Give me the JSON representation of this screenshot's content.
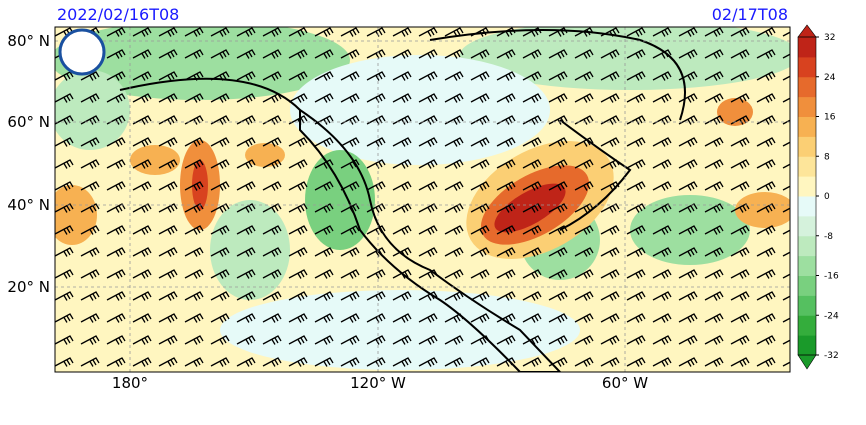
{
  "header": {
    "start_time": "2022/02/16T08",
    "end_time": "02/17T08"
  },
  "map": {
    "lat_labels": [
      "80° N",
      "60° N",
      "40° N",
      "20° N"
    ],
    "lon_labels": [
      "180°",
      "120° W",
      "60° W"
    ]
  },
  "colorbar": {
    "range": [
      -32,
      32
    ],
    "ticks": [
      32,
      24,
      16,
      8,
      0,
      -8,
      -16,
      -24,
      -32
    ],
    "colors": [
      "#1a9a2a",
      "#34ad3c",
      "#55c060",
      "#79d07f",
      "#9ddfa0",
      "#bdeabe",
      "#d5f2dc",
      "#e6faf8",
      "#fff6c0",
      "#fde59a",
      "#fbcf74",
      "#f7b152",
      "#f08f3c",
      "#e66a2c",
      "#d8421f",
      "#bf2418"
    ]
  }
}
